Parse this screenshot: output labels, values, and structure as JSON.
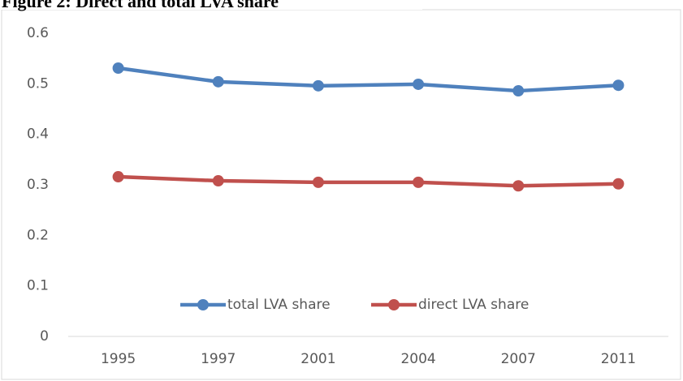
{
  "chart_data": {
    "type": "line",
    "title": "Figure 2: Direct and total LVA share",
    "categories": [
      "1995",
      "1997",
      "2001",
      "2004",
      "2007",
      "2011"
    ],
    "series": [
      {
        "name": "total LVA share",
        "color": "#4f81bd",
        "values": [
          0.531,
          0.504,
          0.496,
          0.499,
          0.486,
          0.497
        ]
      },
      {
        "name": "direct LVA share",
        "color": "#c0504d",
        "values": [
          0.316,
          0.308,
          0.305,
          0.305,
          0.298,
          0.302
        ]
      }
    ],
    "ylim": [
      0,
      0.6
    ],
    "yticks": [
      0,
      0.1,
      0.2,
      0.3,
      0.4,
      0.5,
      0.6
    ],
    "grid": false,
    "legend": "bottom"
  }
}
